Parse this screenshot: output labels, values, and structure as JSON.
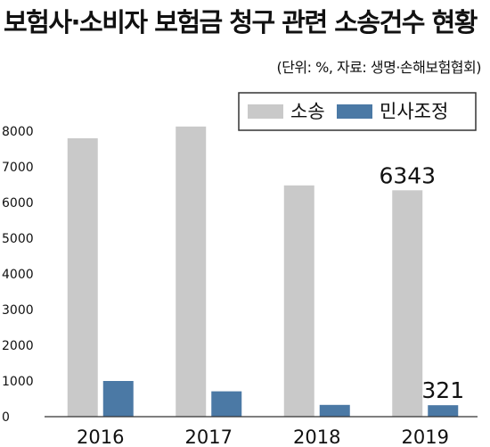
{
  "title": "보험사·소비자 보험금 청구 관련 소송건수 현황",
  "subtitle": "(단위: %, 자료: 생명·손해보험협회)",
  "colors": {
    "lawsuit": "#c9c9c9",
    "mediation": "#4b79a5",
    "axis": "#333333",
    "grid": "#dddddd"
  },
  "chart_data": {
    "type": "bar",
    "categories": [
      "2016",
      "2017",
      "2018",
      "2019"
    ],
    "series": [
      {
        "name": "소송",
        "values": [
          7800,
          8130,
          6480,
          6343
        ]
      },
      {
        "name": "민사조정",
        "values": [
          1000,
          710,
          330,
          321
        ]
      }
    ],
    "ylim": [
      0,
      8000
    ],
    "yticks": [
      "0",
      "1000",
      "2000",
      "3000",
      "4000",
      "5000",
      "6000",
      "7000",
      "8000"
    ],
    "data_labels": [
      {
        "series": 0,
        "index": 3,
        "text": "6343"
      },
      {
        "series": 1,
        "index": 3,
        "text": "321"
      }
    ],
    "legend": "top-right",
    "grid": false,
    "title": "",
    "xlabel": "",
    "ylabel": ""
  }
}
